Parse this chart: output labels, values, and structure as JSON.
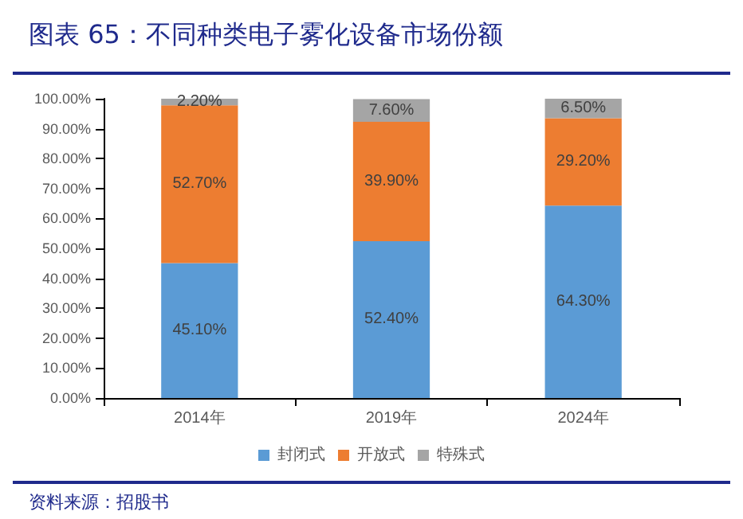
{
  "chart_data": {
    "type": "bar",
    "stacked": true,
    "title": "图表 65：不同种类电子雾化设备市场份额",
    "annotations": [
      "资料来源：招股书"
    ],
    "categories": [
      "2014年",
      "2019年",
      "2024年"
    ],
    "series": [
      {
        "name": "封闭式",
        "color": "#5b9bd5",
        "values": [
          45.1,
          52.4,
          64.3
        ],
        "value_labels": [
          "45.10%",
          "52.40%",
          "64.30%"
        ]
      },
      {
        "name": "开放式",
        "color": "#ed7d31",
        "values": [
          52.7,
          39.9,
          29.2
        ],
        "value_labels": [
          "52.70%",
          "39.90%",
          "29.20%"
        ]
      },
      {
        "name": "特殊式",
        "color": "#a5a5a5",
        "values": [
          2.2,
          7.6,
          6.5
        ],
        "value_labels": [
          "2.20%",
          "7.60%",
          "6.50%"
        ]
      }
    ],
    "ylim": [
      0,
      100
    ],
    "yticks": [
      {
        "value": 0,
        "label": "0.00%"
      },
      {
        "value": 10,
        "label": "10.00%"
      },
      {
        "value": 20,
        "label": "20.00%"
      },
      {
        "value": 30,
        "label": "30.00%"
      },
      {
        "value": 40,
        "label": "40.00%"
      },
      {
        "value": 50,
        "label": "50.00%"
      },
      {
        "value": 60,
        "label": "60.00%"
      },
      {
        "value": 70,
        "label": "70.00%"
      },
      {
        "value": 80,
        "label": "80.00%"
      },
      {
        "value": 90,
        "label": "90.00%"
      },
      {
        "value": 100,
        "label": "100.00%"
      }
    ],
    "grid": false,
    "legend": "bottom"
  }
}
